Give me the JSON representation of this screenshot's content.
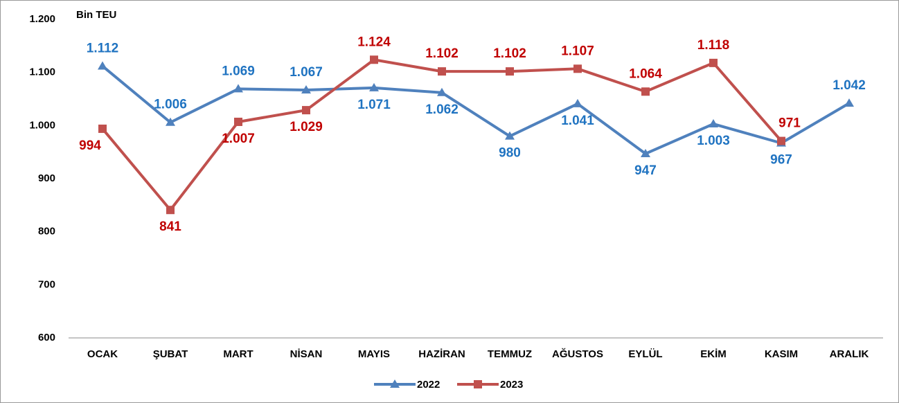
{
  "chart_data": {
    "type": "line",
    "y_axis_label": "Bin TEU",
    "categories": [
      "OCAK",
      "ŞUBAT",
      "MART",
      "NİSAN",
      "MAYIS",
      "HAZİRAN",
      "TEMMUZ",
      "AĞUSTOS",
      "EYLÜL",
      "EKİM",
      "KASIM",
      "ARALIK"
    ],
    "series": [
      {
        "name": "2022",
        "color": "#4f81bd",
        "marker": "triangle",
        "values": [
          1112,
          1006,
          1069,
          1067,
          1071,
          1062,
          980,
          1041,
          947,
          1003,
          967,
          1042
        ],
        "value_labels": [
          "1.112",
          "1.006",
          "1.069",
          "1.067",
          "1.071",
          "1.062",
          "980",
          "1.041",
          "947",
          "1.003",
          "967",
          "1.042"
        ]
      },
      {
        "name": "2023",
        "color": "#c0504d",
        "marker": "square",
        "values": [
          994,
          841,
          1007,
          1029,
          1124,
          1102,
          1102,
          1107,
          1064,
          1118,
          971,
          null
        ],
        "value_labels": [
          "994",
          "841",
          "1.007",
          "1.029",
          "1.124",
          "1.102",
          "1.102",
          "1.107",
          "1.064",
          "1.118",
          "971",
          null
        ]
      }
    ],
    "ylim": [
      600,
      1200
    ],
    "yticks": [
      {
        "value": 600,
        "label": "600"
      },
      {
        "value": 700,
        "label": "700"
      },
      {
        "value": 800,
        "label": "800"
      },
      {
        "value": 900,
        "label": "900"
      },
      {
        "value": 1000,
        "label": "1.000"
      },
      {
        "value": 1100,
        "label": "1.100"
      },
      {
        "value": 1200,
        "label": "1.200"
      }
    ],
    "grid": false,
    "legend": "bottom"
  }
}
